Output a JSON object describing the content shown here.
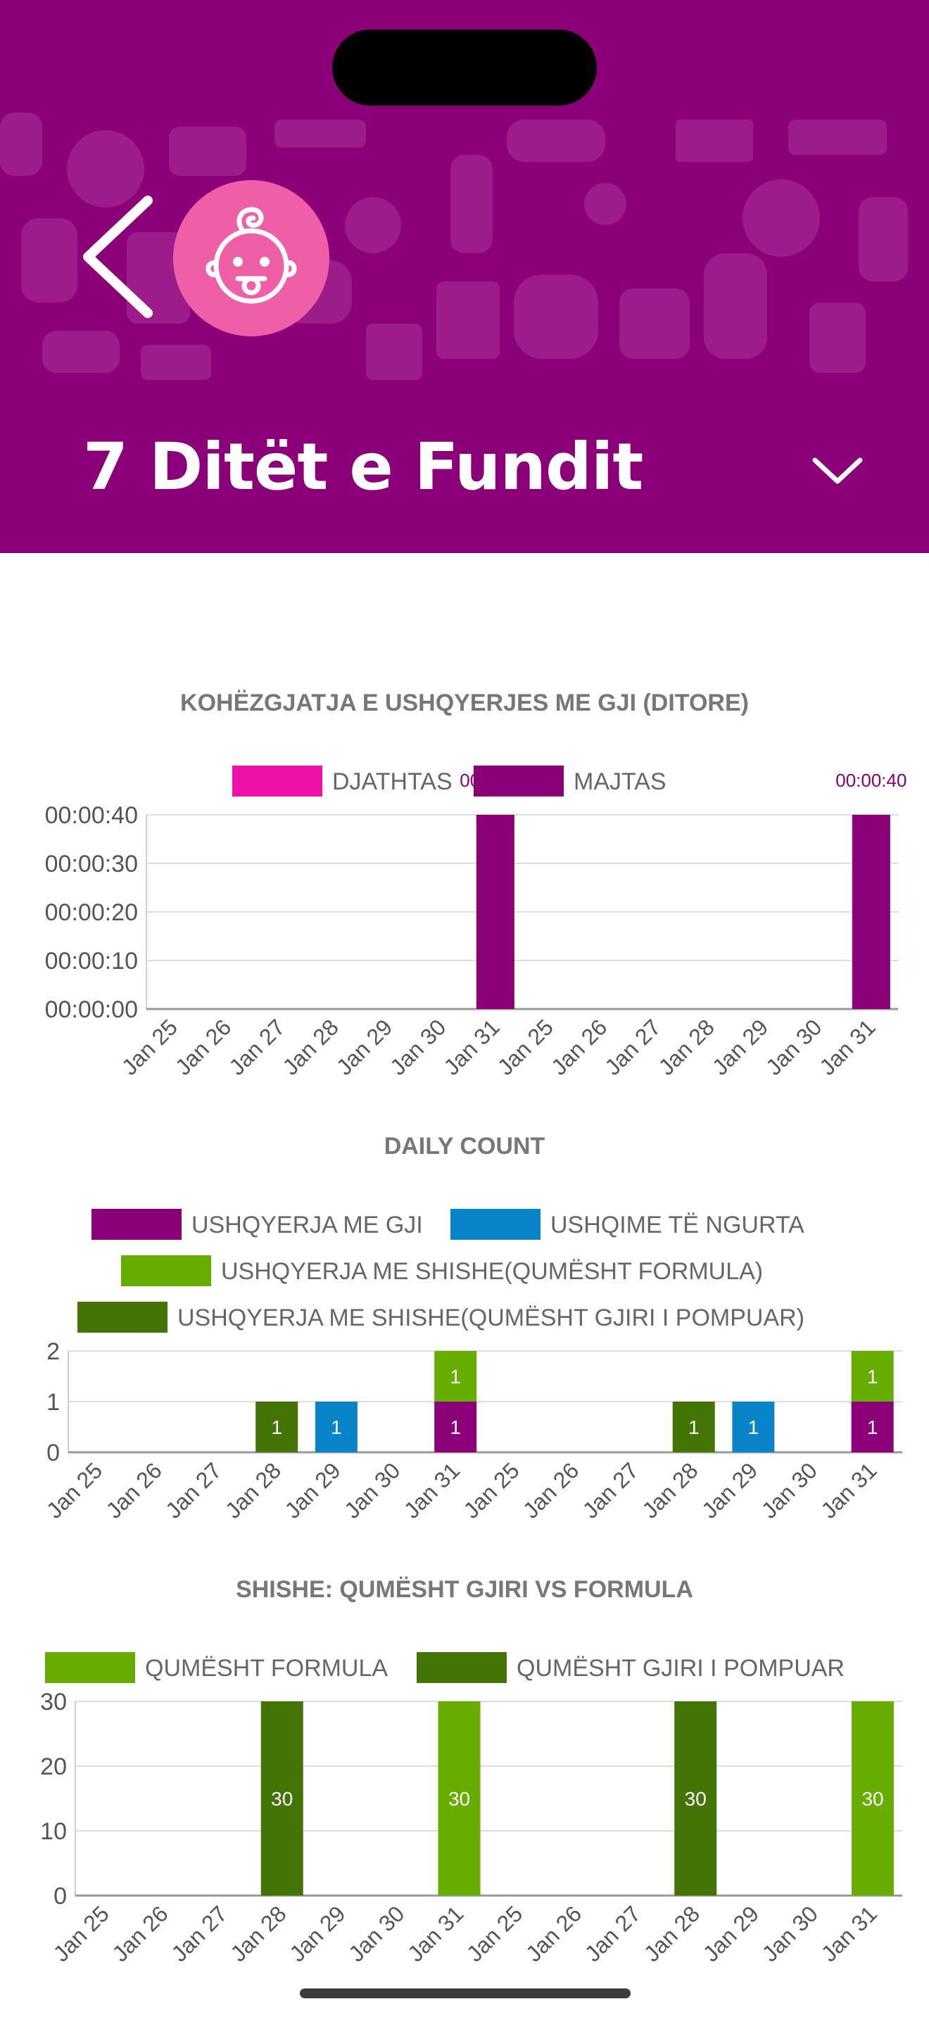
{
  "header": {
    "title": "7 Ditët e Fundit",
    "colors": {
      "background": "#8b0079",
      "avatar": "#ef5fa7"
    },
    "icons": {
      "back": "chevron-left-icon",
      "avatar": "baby-face-icon",
      "dropdown": "chevron-down-icon"
    }
  },
  "chart_data": [
    {
      "type": "bar",
      "title": "KOHËZGJATJA E USHQYERJES ME GJI (DITORE)",
      "categories": [
        "Jan 25",
        "Jan 26",
        "Jan 27",
        "Jan 28",
        "Jan 29",
        "Jan 30",
        "Jan 31",
        "Jan 25",
        "Jan 26",
        "Jan 27",
        "Jan 28",
        "Jan 29",
        "Jan 30",
        "Jan 31"
      ],
      "series": [
        {
          "name": "DJATHTAS",
          "color": "#ee11aa",
          "values": [
            0,
            0,
            0,
            0,
            0,
            0,
            0,
            0,
            0,
            0,
            0,
            0,
            0,
            0
          ]
        },
        {
          "name": "MAJTAS",
          "color": "#8b0079",
          "values": [
            0,
            0,
            0,
            0,
            0,
            0,
            40,
            0,
            0,
            0,
            0,
            0,
            0,
            40
          ]
        }
      ],
      "ylim": [
        0,
        40
      ],
      "yticks": [
        0,
        10,
        20,
        30,
        40
      ],
      "ytick_labels": [
        "00:00:00",
        "00:00:10",
        "00:00:20",
        "00:00:30",
        "00:00:40"
      ],
      "data_labels": [
        "00:00:40",
        "00:00:40"
      ],
      "grid": true,
      "legend": "top"
    },
    {
      "type": "bar",
      "stacked": true,
      "title": "DAILY COUNT",
      "categories": [
        "Jan 25",
        "Jan 26",
        "Jan 27",
        "Jan 28",
        "Jan 29",
        "Jan 30",
        "Jan 31",
        "Jan 25",
        "Jan 26",
        "Jan 27",
        "Jan 28",
        "Jan 29",
        "Jan 30",
        "Jan 31"
      ],
      "series": [
        {
          "name": "USHQYERJA ME GJI",
          "color": "#8b0079",
          "values": [
            0,
            0,
            0,
            0,
            0,
            0,
            1,
            0,
            0,
            0,
            0,
            0,
            0,
            1
          ]
        },
        {
          "name": "USHQIME TË NGURTA",
          "color": "#0a84c8",
          "values": [
            0,
            0,
            0,
            0,
            1,
            0,
            0,
            0,
            0,
            0,
            0,
            1,
            0,
            0
          ]
        },
        {
          "name": "USHQYERJA ME SHISHE(QUMËSHT FORMULA)",
          "color": "#66ad00",
          "values": [
            0,
            0,
            0,
            0,
            0,
            0,
            1,
            0,
            0,
            0,
            0,
            0,
            0,
            1
          ]
        },
        {
          "name": "USHQYERJA ME SHISHE(QUMËSHT GJIRI I POMPUAR)",
          "color": "#447306",
          "values": [
            0,
            0,
            0,
            1,
            0,
            0,
            0,
            0,
            0,
            0,
            1,
            0,
            0,
            0
          ]
        }
      ],
      "ylim": [
        0,
        2
      ],
      "yticks": [
        0,
        1,
        2
      ],
      "grid": true,
      "legend": "top"
    },
    {
      "type": "bar",
      "title": "SHISHE: QUMËSHT GJIRI VS FORMULA",
      "categories": [
        "Jan 25",
        "Jan 26",
        "Jan 27",
        "Jan 28",
        "Jan 29",
        "Jan 30",
        "Jan 31",
        "Jan 25",
        "Jan 26",
        "Jan 27",
        "Jan 28",
        "Jan 29",
        "Jan 30",
        "Jan 31"
      ],
      "series": [
        {
          "name": "QUMËSHT FORMULA",
          "color": "#66ad00",
          "values": [
            0,
            0,
            0,
            0,
            0,
            0,
            30,
            0,
            0,
            0,
            0,
            0,
            0,
            30
          ]
        },
        {
          "name": "QUMËSHT GJIRI I POMPUAR",
          "color": "#447306",
          "values": [
            0,
            0,
            0,
            30,
            0,
            0,
            0,
            0,
            0,
            0,
            30,
            0,
            0,
            0
          ]
        }
      ],
      "ylim": [
        0,
        30
      ],
      "yticks": [
        0,
        10,
        20,
        30
      ],
      "grid": true,
      "legend": "top"
    }
  ]
}
